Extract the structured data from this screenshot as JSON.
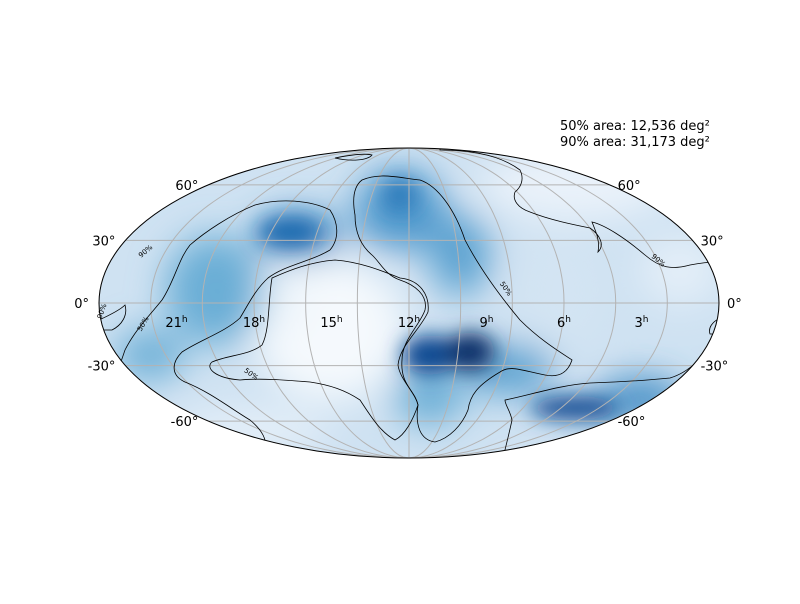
{
  "stats": {
    "area50": "50% area: 12,536 deg²",
    "area90": "90% area: 31,173 deg²"
  },
  "dec_labels_left": [
    "60°",
    "30°",
    "0°",
    "-30°",
    "-60°"
  ],
  "dec_labels_right": [
    "60°",
    "30°",
    "0°",
    "-30°",
    "-60°"
  ],
  "ra_labels": [
    {
      "hours": "21",
      "sup": "h"
    },
    {
      "hours": "18",
      "sup": "h"
    },
    {
      "hours": "15",
      "sup": "h"
    },
    {
      "hours": "12",
      "sup": "h"
    },
    {
      "hours": "9",
      "sup": "h"
    },
    {
      "hours": "6",
      "sup": "h"
    },
    {
      "hours": "3",
      "sup": "h"
    }
  ],
  "contour_labels": [
    "90%",
    "50%",
    "90%",
    "50%",
    "90%",
    "50%",
    "90%"
  ],
  "colors": {
    "map_edge": "#000000",
    "graticule": "#b3b3b3",
    "colormap": [
      "#f7fbff",
      "#deebf7",
      "#c6dbef",
      "#9ecae1",
      "#6baed6",
      "#4292c6",
      "#2171b5",
      "#08519c",
      "#08306b"
    ]
  },
  "chart_data": {
    "type": "heatmap",
    "projection": "Mollweide (astro hours)",
    "colormap": "Blues",
    "contour_levels": [
      "50%",
      "90%"
    ],
    "grid": true,
    "hotspots": [
      {
        "ra_h": 17.2,
        "dec": 25,
        "intensity": 0.85
      },
      {
        "ra_h": 10.2,
        "dec": -17,
        "intensity": 1.0
      },
      {
        "ra_h": 8.6,
        "dec": -17,
        "intensity": 1.0
      },
      {
        "ra_h": 3.6,
        "dec": -42,
        "intensity": 0.95
      }
    ]
  }
}
